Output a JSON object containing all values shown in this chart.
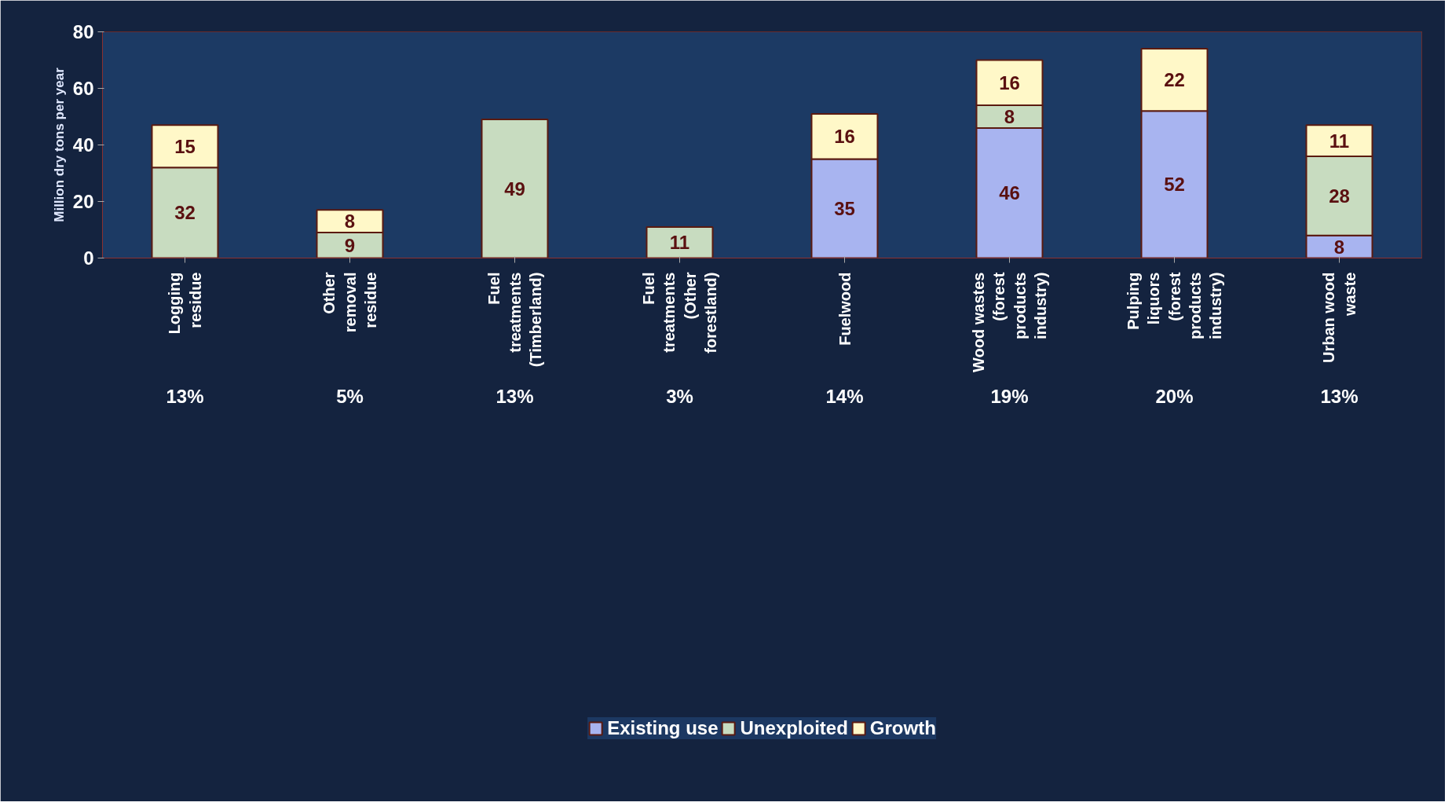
{
  "chart_data": {
    "type": "bar",
    "stacked": true,
    "ylabel": "Million dry tons per year",
    "categories": [
      "Logging residue",
      "Other removal residue",
      "Fuel treatments (Timberland)",
      "Fuel treatments (Other forestland)",
      "Fuelwood",
      "Wood wastes (forest products industry)",
      "Pulping liquors (forest products industry)",
      "Urban wood waste"
    ],
    "series": [
      {
        "name": "Existing use",
        "color": "#a8b4f0",
        "values": [
          null,
          null,
          null,
          null,
          35,
          46,
          52,
          8
        ]
      },
      {
        "name": "Unexploited",
        "color": "#c8dcc0",
        "values": [
          32,
          9,
          49,
          11,
          null,
          8,
          null,
          28
        ]
      },
      {
        "name": "Growth",
        "color": "#fff8c8",
        "values": [
          15,
          8,
          null,
          null,
          16,
          16,
          22,
          11
        ]
      }
    ],
    "ylim": [
      0,
      80
    ],
    "yticks": [
      0,
      20,
      40,
      60,
      80
    ],
    "grid": false,
    "legend": "bottom",
    "data_labels": true,
    "annotations": [
      "13%",
      "5%",
      "13%",
      "3%",
      "14%",
      "19%",
      "20%",
      "13%"
    ]
  }
}
